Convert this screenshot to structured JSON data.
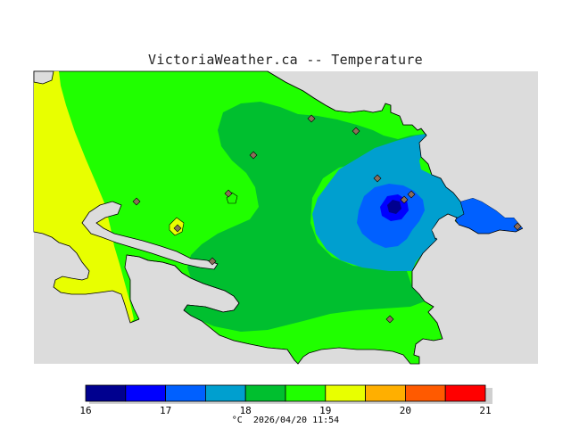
{
  "title": "VictoriaWeather.ca -- Temperature",
  "legend": {
    "colors": [
      "#00008f",
      "#0000ff",
      "#0060ff",
      "#009fcf",
      "#00bf2f",
      "#20ff00",
      "#e8ff00",
      "#ffaf00",
      "#ff5a00",
      "#ff0000"
    ],
    "tick_labels": [
      "16",
      "17",
      "18",
      "19",
      "20",
      "21"
    ],
    "unit": "°C",
    "timestamp": "2026/04/20 11:54"
  },
  "map": {
    "land_colors": {
      "yellow": "#e8ff00",
      "light_green": "#20ff00",
      "dark_green": "#00bf2f",
      "teal": "#009fcf",
      "blue": "#0060ff",
      "deep_blue": "#0000ff",
      "navy": "#00008f",
      "water": "#dcdcdc"
    },
    "station_marker_color": "#8c6d5a"
  }
}
